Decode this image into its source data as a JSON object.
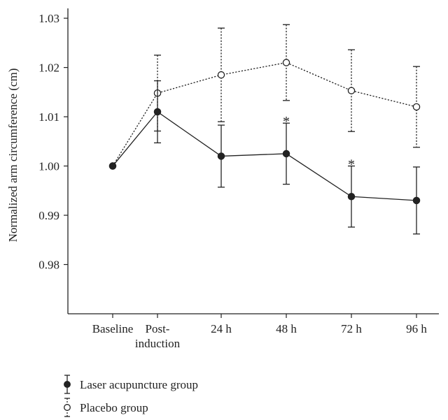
{
  "chart_data": {
    "type": "line",
    "title": "",
    "xlabel": "",
    "ylabel": "Normalized arm circumference (cm)",
    "categories": [
      [
        "Baseline"
      ],
      [
        "Post-",
        "induction"
      ],
      [
        "24 h"
      ],
      [
        "48 h"
      ],
      [
        "72 h"
      ],
      [
        "96 h"
      ]
    ],
    "ylim": [
      0.97,
      1.032
    ],
    "yticks": [
      "0.98",
      "0.99",
      "1.00",
      "1.01",
      "1.02",
      "1.03"
    ],
    "grid": false,
    "legend_position": "bottom-left",
    "series": [
      {
        "name": "Laser acupuncture group",
        "style": "solid",
        "marker": "filled-circle",
        "color": "#222222",
        "values": [
          1.0,
          1.011,
          1.002,
          1.0025,
          0.9938,
          0.993
        ],
        "error": [
          null,
          0.0063,
          0.0063,
          0.0062,
          0.0062,
          0.0068
        ]
      },
      {
        "name": "Placebo group",
        "style": "dotted",
        "marker": "open-circle",
        "color": "#222222",
        "values": [
          1.0,
          1.0148,
          1.0185,
          1.021,
          1.0153,
          1.012
        ],
        "error": [
          null,
          0.0077,
          0.0095,
          0.0077,
          0.0083,
          0.0082
        ]
      }
    ],
    "annotations": [
      {
        "text": "*",
        "category": 3
      },
      {
        "text": "*",
        "category": 4
      }
    ]
  }
}
